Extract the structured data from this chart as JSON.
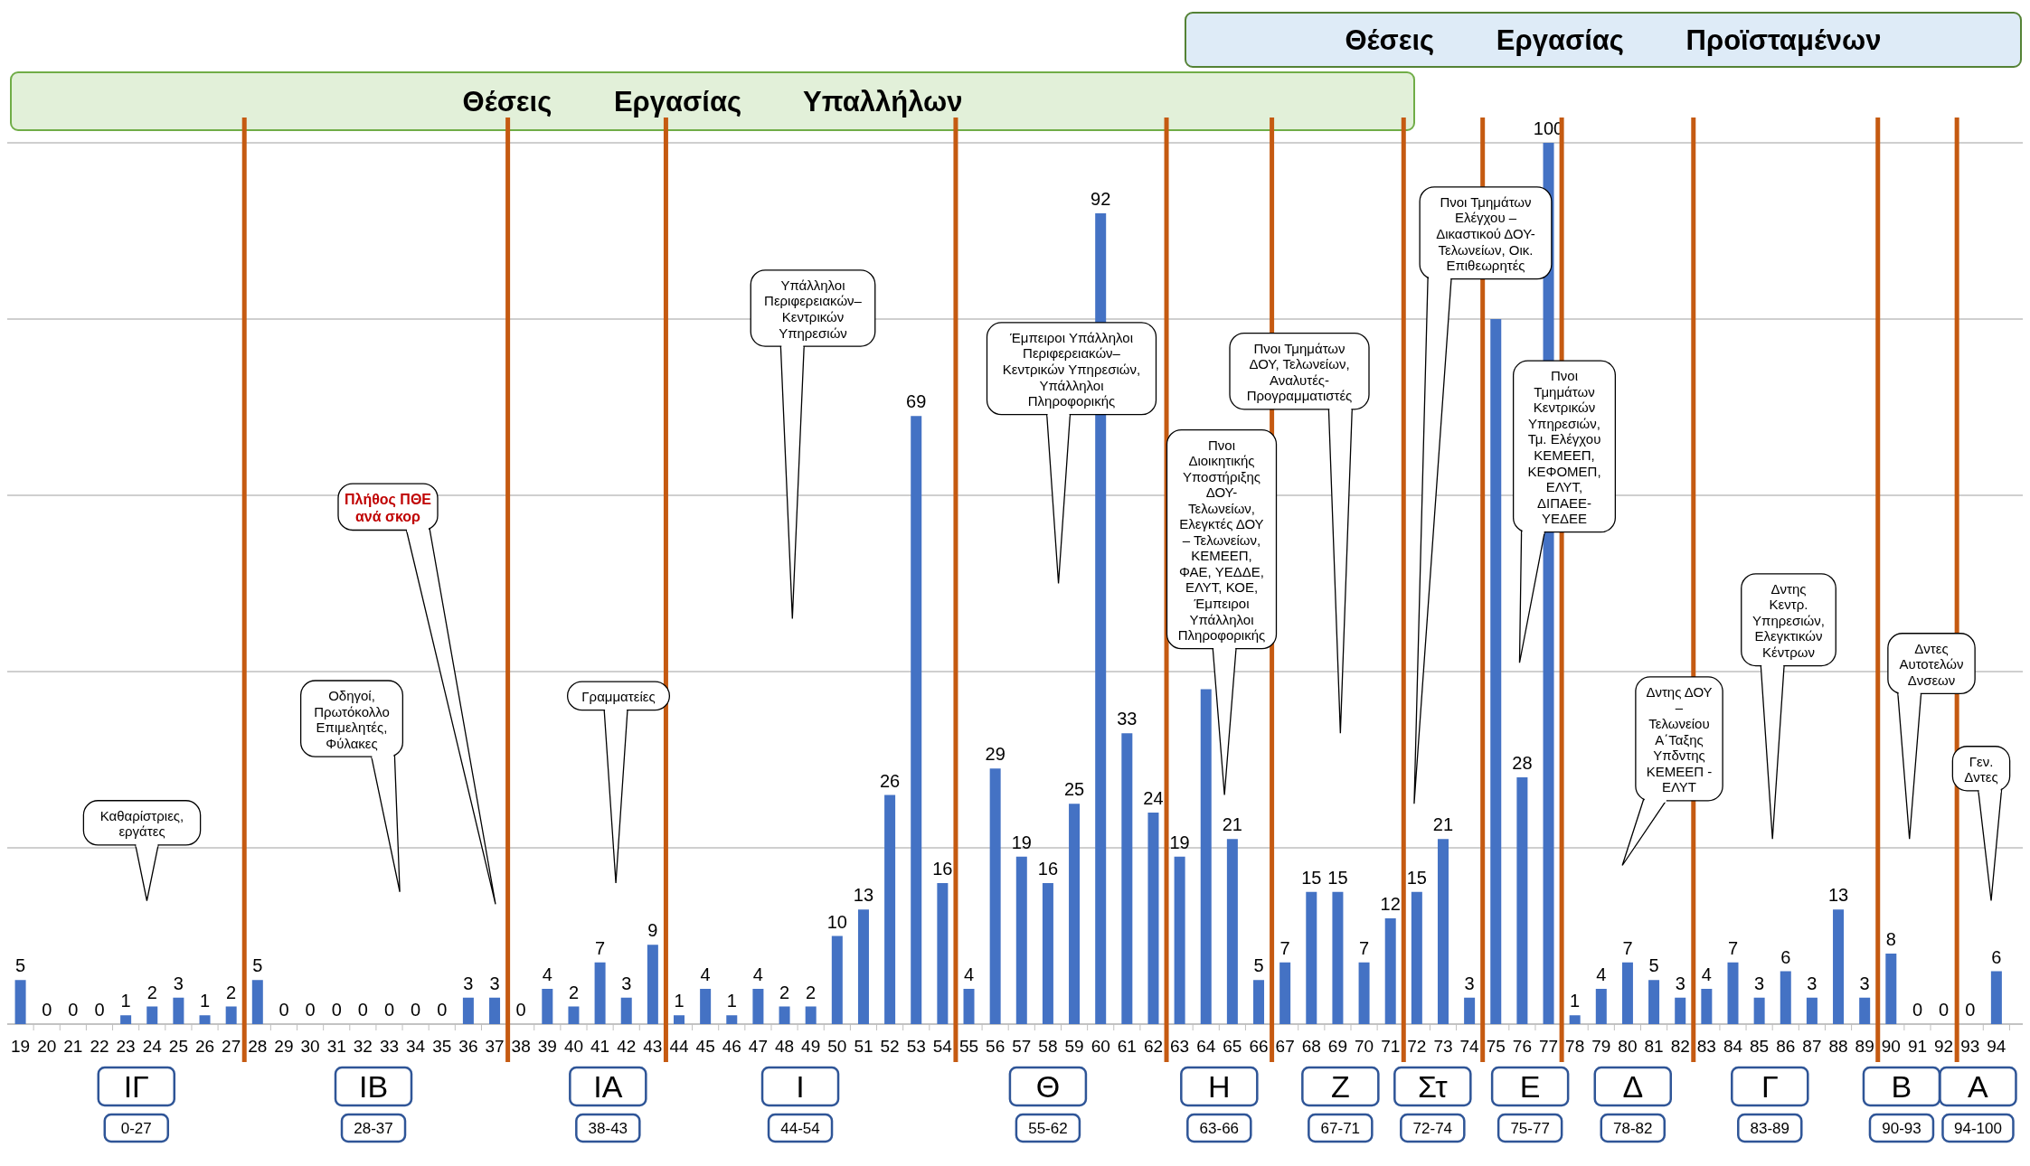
{
  "chart_data": {
    "type": "bar",
    "title": "Πλήθος ΠΘΕ\nανά σκορ",
    "x": [
      19,
      20,
      21,
      22,
      23,
      24,
      25,
      26,
      27,
      28,
      29,
      30,
      31,
      32,
      33,
      34,
      35,
      36,
      37,
      38,
      39,
      40,
      41,
      42,
      43,
      44,
      45,
      46,
      47,
      48,
      49,
      50,
      51,
      52,
      53,
      54,
      55,
      56,
      57,
      58,
      59,
      60,
      61,
      62,
      63,
      64,
      65,
      66,
      67,
      68,
      69,
      70,
      71,
      72,
      73,
      74,
      75,
      76,
      77,
      78,
      79,
      80,
      81,
      82,
      83,
      84,
      85,
      86,
      87,
      88,
      89,
      90,
      91,
      92,
      93,
      94
    ],
    "values": [
      5,
      0,
      0,
      0,
      1,
      2,
      3,
      1,
      2,
      5,
      0,
      0,
      0,
      0,
      0,
      0,
      0,
      3,
      3,
      0,
      4,
      2,
      7,
      3,
      9,
      1,
      4,
      1,
      4,
      2,
      2,
      10,
      13,
      26,
      69,
      16,
      4,
      29,
      19,
      16,
      25,
      92,
      33,
      24,
      19,
      38,
      21,
      5,
      7,
      15,
      15,
      7,
      12,
      15,
      21,
      3,
      80,
      28,
      100,
      1,
      4,
      7,
      5,
      3,
      4,
      7,
      3,
      6,
      3,
      13,
      3,
      8,
      0,
      0,
      0,
      6
    ],
    "value_labels": [
      "5",
      "0",
      "0",
      "0",
      "1",
      "2",
      "3",
      "1",
      "2",
      "5",
      "0",
      "0",
      "0",
      "0",
      "0",
      "0",
      "0",
      "3",
      "3",
      "0",
      "4",
      "2",
      "7",
      "3",
      "9",
      "1",
      "4",
      "1",
      "4",
      "2",
      "2",
      "10",
      "13",
      "26",
      "69",
      "16",
      "4",
      "29",
      "19",
      "16",
      "25",
      "92",
      "33",
      "24",
      "19",
      null,
      "21",
      "5",
      "7",
      "15",
      "15",
      "7",
      "12",
      "15",
      "21",
      "3",
      null,
      "28",
      "100",
      "1",
      "4",
      "7",
      "5",
      "3",
      "4",
      "7",
      "3",
      "6",
      "3",
      "13",
      "3",
      "8",
      "0",
      "0",
      "0",
      "6"
    ],
    "color": "#4472c4",
    "xlim": [
      18.5,
      95
    ],
    "xticks": [
      19,
      20,
      21,
      22,
      23,
      24,
      25,
      26,
      27,
      28,
      29,
      30,
      31,
      32,
      33,
      34,
      35,
      36,
      37,
      38,
      39,
      40,
      41,
      42,
      43,
      44,
      45,
      46,
      47,
      48,
      49,
      50,
      51,
      52,
      53,
      54,
      55,
      56,
      57,
      58,
      59,
      60,
      61,
      62,
      63,
      64,
      65,
      66,
      67,
      68,
      69,
      70,
      71,
      72,
      73,
      74,
      75,
      76,
      77,
      78,
      79,
      80,
      81,
      82,
      83,
      84,
      85,
      86,
      87,
      88,
      89,
      90,
      91,
      92,
      93,
      94
    ],
    "ylim": [
      0,
      100
    ],
    "yticks": [
      {
        "value": 0,
        "label": null
      },
      {
        "value": 20,
        "label": null
      },
      {
        "value": 40,
        "label": null
      },
      {
        "value": 60,
        "label": null
      },
      {
        "value": 80,
        "label": null
      },
      {
        "value": 100,
        "label": null
      }
    ],
    "tick_labels": "x",
    "grid": "y",
    "ref_lines": [
      {
        "axis": "x",
        "value": 27.5,
        "color": "#c55a11"
      },
      {
        "axis": "x",
        "value": 37.5,
        "color": "#c55a11"
      },
      {
        "axis": "x",
        "value": 43.5,
        "color": "#c55a11"
      },
      {
        "axis": "x",
        "value": 54.5,
        "color": "#c55a11"
      },
      {
        "axis": "x",
        "value": 62.5,
        "color": "#c55a11"
      },
      {
        "axis": "x",
        "value": 66.5,
        "color": "#c55a11"
      },
      {
        "axis": "x",
        "value": 71.5,
        "color": "#c55a11"
      },
      {
        "axis": "x",
        "value": 74.5,
        "color": "#c55a11"
      },
      {
        "axis": "x",
        "value": 77.5,
        "color": "#c55a11"
      },
      {
        "axis": "x",
        "value": 82.5,
        "color": "#c55a11"
      },
      {
        "axis": "x",
        "value": 89.5,
        "color": "#c55a11"
      },
      {
        "axis": "x",
        "value": 92.5,
        "color": "#c55a11"
      }
    ],
    "annotations": [
      "Καθαρίστριες,\nεργάτες",
      "Οδηγοί,\nΠρωτόκολλο\nΕπιμελητές,\nΦύλακες",
      "Γραμματείες",
      "Υπάλληλοι\nΠεριφερειακών–\nΚεντρικών\nΥπηρεσιών",
      "Έμπειροι Υπάλληλοι\nΠεριφερειακών–\nΚεντρικών Υπηρεσιών,\nΥπάλληλοι\nΠληροφορικής",
      "Πνοι\nΔιοικητικής\nΥποστήριξης\nΔΟΥ-\nΤελωνείων,\nΕλεγκτές ΔΟΥ\n– Τελωνείων,\nΚΕΜΕΕΠ,\nΦΑΕ, ΥΕΔΔΕ,\nΕΛΥΤ, ΚΟΕ,\nΈμπειροι\nΥπάλληλοι\nΠληροφορικής",
      "Πνοι Τμημάτων\nΔΟΥ,  Τελωνείων,\nΑναλυτές-\nΠρογραμματιστές",
      "Πνοι  Τμημάτων\nΕλέγχου –\nΔικαστικού ΔΟΥ-\nΤελωνείων, Οικ.\nΕπιθεωρητές",
      "Πνοι\nΤμημάτων\nΚεντρικών\nΥπηρεσιών,\nΤμ. Ελέγχου\nΚΕΜΕΕΠ,\nΚΕΦΟΜΕΠ,\nΕΛΥΤ,\nΔΙΠΑΕΕ-\nΥΕΔΕΕ",
      "Δντης ΔΟΥ\n–\nΤελωνείου\nΑ΄Ταξης\nΥπδντης\nΚΕΜΕΕΠ -\nΕΛΥΤ",
      "Δντης\nΚεντρ.\nΥπηρεσιών,\nΕλεγκτικών\nΚέντρων",
      "Δντες\nΑυτοτελών\nΔνσεων",
      "Γεν.\nΔντες",
      "Θέσεις Εργασίας Υπαλλήλων",
      "Θέσεις Εργασίας Προϊσταμένων",
      "ΙΓ",
      "0-27",
      "ΙΒ",
      "28-37",
      "ΙΑ",
      "38-43",
      "Ι",
      "44-54",
      "Θ",
      "55-62",
      "Η",
      "63-66",
      "Ζ",
      "67-71",
      "Στ",
      "72-74",
      "Ε",
      "75-77",
      "Δ",
      "78-82",
      "Γ",
      "83-89",
      "Β",
      "90-93",
      "Α",
      "94-100"
    ]
  }
}
